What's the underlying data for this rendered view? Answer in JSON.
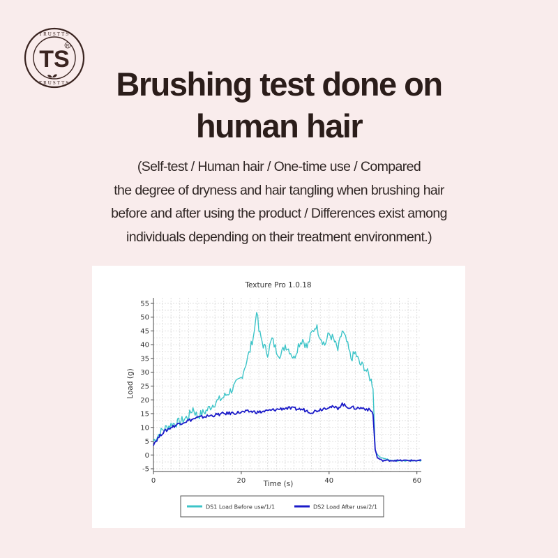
{
  "brand": {
    "logo_letters": "TS",
    "ring_text": "TRUSTTS",
    "registered": "R"
  },
  "heading": {
    "line1": "Brushing test done on",
    "line2": "human hair"
  },
  "note": {
    "line1": "(Self-test / Human hair / One-time use / Compared",
    "line2": "the degree of dryness and hair tangling when brushing hair",
    "line3": "before and after using the product / Differences exist among",
    "line4": "individuals depending on their treatment environment.)"
  },
  "colors": {
    "background": "#f9ecec",
    "series1": "#3cc4c8",
    "series2": "#1a1ac8",
    "title": "#2b1d1a"
  },
  "chart_data": {
    "type": "line",
    "title": "Texture Pro 1.0.18",
    "xlabel": "Time (s)",
    "ylabel": "Load (g)",
    "xlim": [
      0,
      61
    ],
    "ylim": [
      -6,
      56
    ],
    "xticks": [
      0,
      20,
      40,
      60
    ],
    "yticks": [
      -5,
      0,
      5,
      10,
      15,
      20,
      25,
      30,
      35,
      40,
      45,
      50,
      55
    ],
    "grid": true,
    "legend_position": "bottom",
    "series": [
      {
        "name": "DS1 Load Before use/1/1",
        "color": "#3cc4c8",
        "x": [
          0,
          2,
          4,
          6,
          8,
          9,
          10,
          12,
          14,
          16,
          18,
          20,
          21,
          22,
          23,
          23.5,
          24,
          25,
          26,
          27,
          28,
          29,
          30,
          31,
          32,
          33,
          34,
          35,
          36,
          37,
          38,
          39,
          40,
          41,
          42,
          43,
          44,
          45,
          46,
          47,
          48,
          49,
          49.6,
          50,
          50.5,
          51,
          52,
          54,
          56,
          58,
          60,
          61
        ],
        "y": [
          5,
          9,
          11,
          12,
          14,
          17,
          14,
          16,
          19,
          21,
          24,
          28,
          33,
          38,
          45,
          53,
          45,
          40,
          37,
          42,
          38,
          36,
          40,
          38,
          35,
          40,
          42,
          39,
          44,
          47,
          43,
          40,
          44,
          42,
          38,
          45,
          41,
          35,
          37,
          33,
          32,
          29,
          27,
          25,
          2,
          0,
          -1,
          -2,
          -2,
          -2,
          -2,
          -2
        ]
      },
      {
        "name": "DS2 Load After use/2/1",
        "color": "#1a1ac8",
        "x": [
          0,
          1,
          2,
          4,
          6,
          8,
          10,
          12,
          14,
          16,
          18,
          20,
          22,
          24,
          26,
          28,
          30,
          32,
          34,
          36,
          38,
          40,
          42,
          43,
          44,
          46,
          48,
          49.6,
          50,
          50.5,
          51,
          52,
          54,
          56,
          58,
          60,
          61
        ],
        "y": [
          4,
          6,
          8,
          10,
          11.5,
          12.5,
          13.5,
          14,
          14.5,
          15,
          15.2,
          15.5,
          15.8,
          15.5,
          16,
          16.5,
          17,
          16.8,
          16.5,
          15.5,
          16.5,
          17.5,
          17,
          18.5,
          17.5,
          17,
          17,
          16,
          15,
          2,
          -1,
          -2,
          -2,
          -2,
          -2,
          -2,
          -2
        ]
      }
    ]
  }
}
